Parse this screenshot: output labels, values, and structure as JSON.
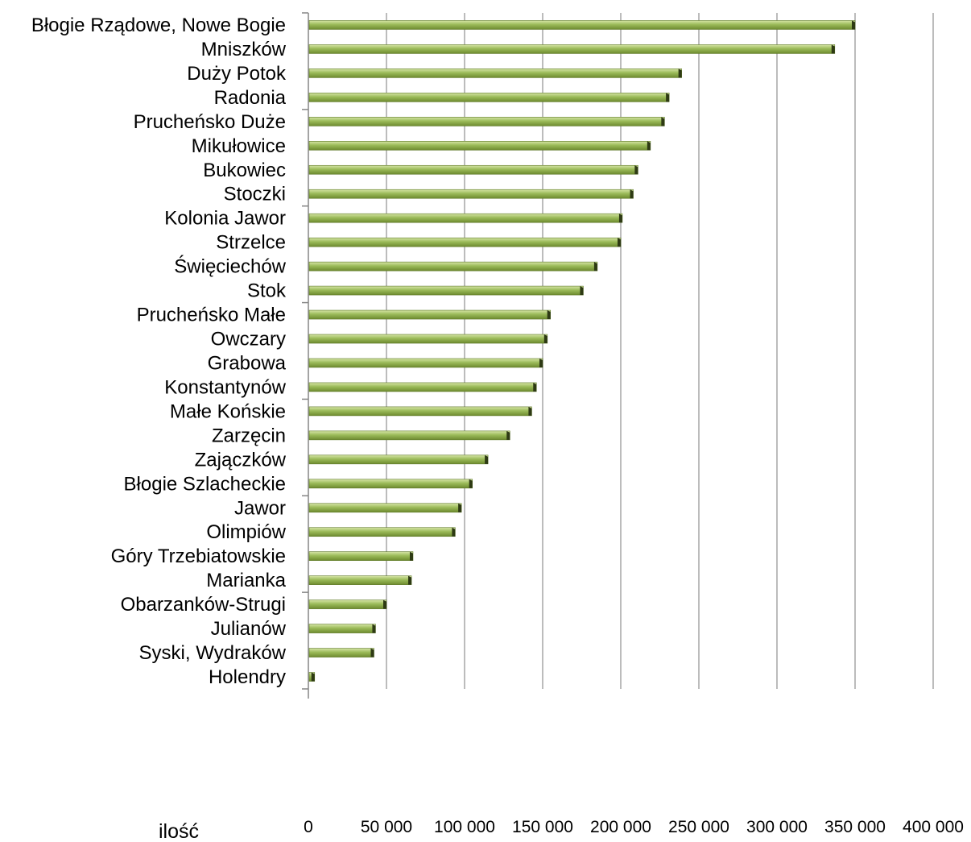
{
  "chart_data": {
    "type": "bar",
    "orientation": "horizontal",
    "categories": [
      "Błogie Rządowe, Nowe Bogie",
      "Mniszków",
      "Duży Potok",
      "Radonia",
      "Pruchеńsko Duże",
      "Mikułowice",
      "Bukowiec",
      "Stoczki",
      "Kolonia Jawor",
      "Strzelce",
      "Święciechów",
      "Stok",
      "Pruchеńsko Małe",
      "Owczary",
      "Grabowa",
      "Konstantynów",
      "Małe Końskie",
      "Zarzęcin",
      "Zajączków",
      "Błogie Szlacheckie",
      "Jawor",
      "Olimpiów",
      "Góry Trzebiatowskie",
      "Marianka",
      "Obarzanków-Strugi",
      "Julianów",
      "Syski, Wydraków",
      "Holendry"
    ],
    "values": [
      350000,
      337000,
      239000,
      231000,
      228000,
      219000,
      211000,
      208000,
      201000,
      200000,
      185000,
      176000,
      155000,
      153000,
      150000,
      146000,
      143000,
      129000,
      115000,
      105000,
      98000,
      94000,
      67000,
      66000,
      50000,
      43000,
      42000,
      4000
    ],
    "xlabel": "ilość",
    "xlim": [
      0,
      400000
    ],
    "xticks": [
      "0",
      "50 000",
      "100 000",
      "150 000",
      "200 000",
      "250 000",
      "300 000",
      "350 000",
      "400 000"
    ],
    "grid": true,
    "colors": {
      "bar_top": "#d6e5a6",
      "bar_mid": "#9bbb59",
      "bar_bottom": "#6d8a2f",
      "bar_end": "#2e3a14",
      "grid": "#a6a6a6",
      "axis": "#868686"
    }
  }
}
